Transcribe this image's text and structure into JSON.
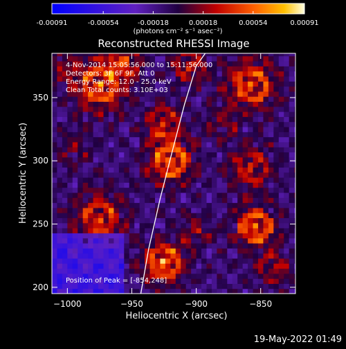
{
  "chart_data": {
    "type": "heatmap",
    "title": "Reconstructed RHESSI Image",
    "xlabel": "Heliocentric X (arcsec)",
    "ylabel": "Heliocentric Y (arcsec)",
    "xlim": [
      -1012,
      -823
    ],
    "ylim": [
      195,
      385
    ],
    "x_ticks": [
      -1000,
      -950,
      -900,
      -850
    ],
    "y_ticks": [
      200,
      250,
      300,
      350
    ],
    "colorbar": {
      "min": -0.00091,
      "max": 0.00091,
      "ticks": [
        -0.00091,
        -0.00054,
        -0.00018,
        0.00018,
        0.00054,
        0.00091
      ],
      "tick_labels": [
        "-0.00091",
        "-0.00054",
        "-0.00018",
        "0.00018",
        "0.00054",
        "0.00091"
      ],
      "unit_label": "(photons cm⁻² s⁻¹ asec⁻²)"
    },
    "annotations": [
      "4-Nov-2014 15:05:56.000 to 15:11:56.000",
      "Detectors: 3F 6F 9F, Att 0",
      "Energy Range: 12.0 - 25.0 keV",
      "Clean    Total counts: 3.10E+03"
    ],
    "peak_label": "Position of Peak = [-854,248]",
    "limb_curve": {
      "x": [
        -943,
        -937,
        -928,
        -918,
        -909,
        -900,
        -893
      ],
      "y": [
        195,
        230,
        270,
        310,
        345,
        375,
        385
      ]
    },
    "intensity_sources": [
      {
        "x": -975,
        "y": 360,
        "amp": 0.00085,
        "sigma": 14
      },
      {
        "x": -955,
        "y": 380,
        "amp": 0.0006,
        "sigma": 10
      },
      {
        "x": -920,
        "y": 300,
        "amp": 0.00088,
        "sigma": 12
      },
      {
        "x": -925,
        "y": 330,
        "amp": 0.0006,
        "sigma": 10
      },
      {
        "x": -905,
        "y": 375,
        "amp": 0.0006,
        "sigma": 9
      },
      {
        "x": -975,
        "y": 255,
        "amp": 0.00065,
        "sigma": 14
      },
      {
        "x": -925,
        "y": 220,
        "amp": 0.00091,
        "sigma": 11
      },
      {
        "x": -900,
        "y": 245,
        "amp": 0.0004,
        "sigma": 8
      },
      {
        "x": -857,
        "y": 360,
        "amp": 0.00075,
        "sigma": 14
      },
      {
        "x": -857,
        "y": 295,
        "amp": 0.00055,
        "sigma": 12
      },
      {
        "x": -854,
        "y": 248,
        "amp": 0.00091,
        "sigma": 11
      },
      {
        "x": -840,
        "y": 215,
        "amp": 0.0005,
        "sigma": 9
      },
      {
        "x": -995,
        "y": 310,
        "amp": 0.00035,
        "sigma": 8
      },
      {
        "x": -1005,
        "y": 375,
        "amp": 0.0004,
        "sigma": 8
      },
      {
        "x": -880,
        "y": 330,
        "amp": 0.0003,
        "sigma": 9
      }
    ]
  },
  "footer": {
    "date": "19-May-2022 01:49"
  }
}
